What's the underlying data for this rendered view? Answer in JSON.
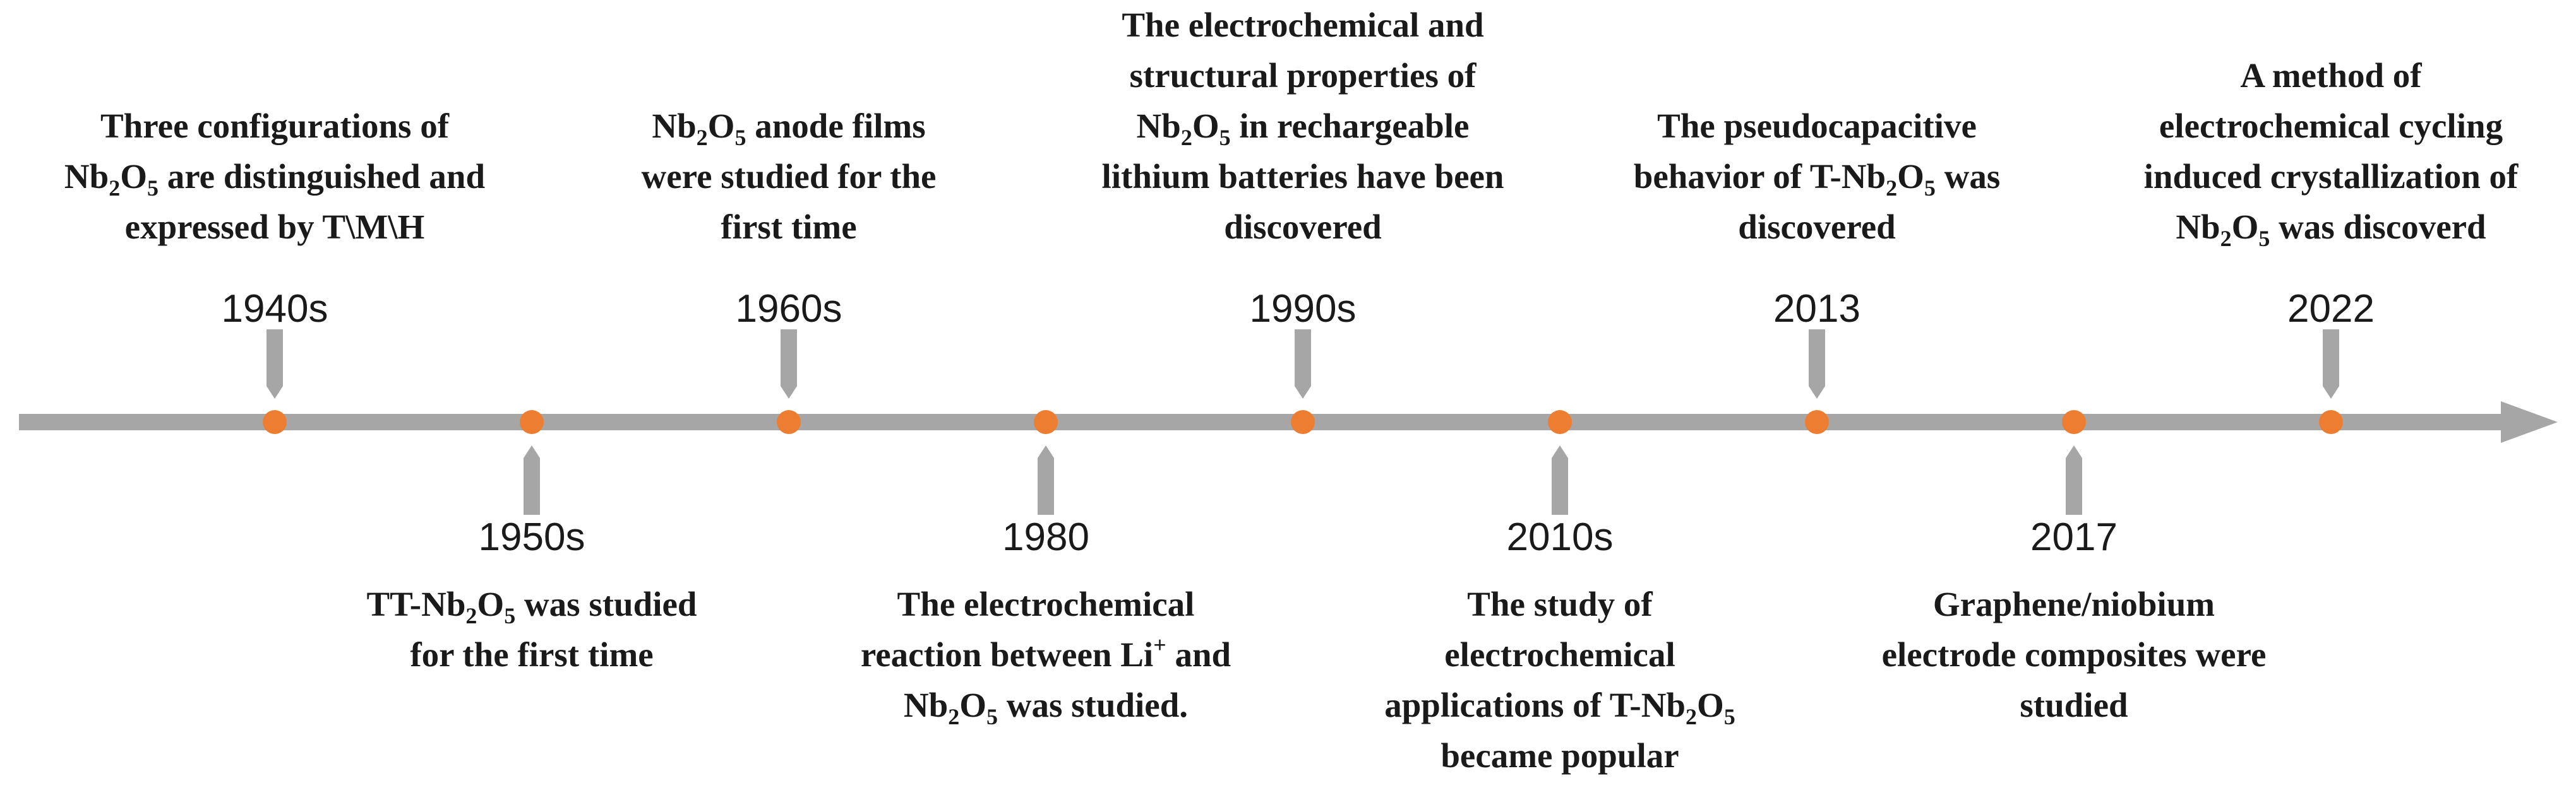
{
  "timeline": {
    "line_color": "#a6a6a6",
    "marker_color": "#ed7d31",
    "text_color": "#1a1a1a",
    "events": [
      {
        "year": "1940s",
        "position": "above",
        "lines": [
          [
            {
              "t": "Three configurations of"
            }
          ],
          [
            {
              "t": "Nb"
            },
            {
              "t": "2",
              "s": "sub"
            },
            {
              "t": "O"
            },
            {
              "t": "5",
              "s": "sub"
            },
            {
              "t": " are distinguished and"
            }
          ],
          [
            {
              "t": "expressed by T\\M\\H"
            }
          ]
        ]
      },
      {
        "year": "1950s",
        "position": "below",
        "lines": [
          [
            {
              "t": "TT-Nb"
            },
            {
              "t": "2",
              "s": "sub"
            },
            {
              "t": "O"
            },
            {
              "t": "5",
              "s": "sub"
            },
            {
              "t": " was studied"
            }
          ],
          [
            {
              "t": "for the first time"
            }
          ]
        ]
      },
      {
        "year": "1960s",
        "position": "above",
        "lines": [
          [
            {
              "t": "Nb"
            },
            {
              "t": "2",
              "s": "sub"
            },
            {
              "t": "O"
            },
            {
              "t": "5",
              "s": "sub"
            },
            {
              "t": " anode films"
            }
          ],
          [
            {
              "t": "were studied for the"
            }
          ],
          [
            {
              "t": "first time"
            }
          ]
        ]
      },
      {
        "year": "1980",
        "position": "below",
        "lines": [
          [
            {
              "t": "The electrochemical"
            }
          ],
          [
            {
              "t": "reaction between Li"
            },
            {
              "t": "+",
              "s": "sup"
            },
            {
              "t": " and"
            }
          ],
          [
            {
              "t": "Nb"
            },
            {
              "t": "2",
              "s": "sub"
            },
            {
              "t": "O"
            },
            {
              "t": "5",
              "s": "sub"
            },
            {
              "t": " was studied."
            }
          ]
        ]
      },
      {
        "year": "1990s",
        "position": "above",
        "lines": [
          [
            {
              "t": "The electrochemical and"
            }
          ],
          [
            {
              "t": "structural properties of"
            }
          ],
          [
            {
              "t": "Nb"
            },
            {
              "t": "2",
              "s": "sub"
            },
            {
              "t": "O"
            },
            {
              "t": "5",
              "s": "sub"
            },
            {
              "t": " in rechargeable"
            }
          ],
          [
            {
              "t": "lithium batteries have been"
            }
          ],
          [
            {
              "t": "discovered"
            }
          ]
        ]
      },
      {
        "year": "2010s",
        "position": "below",
        "lines": [
          [
            {
              "t": "The study of"
            }
          ],
          [
            {
              "t": "electrochemical"
            }
          ],
          [
            {
              "t": "applications of T-Nb"
            },
            {
              "t": "2",
              "s": "sub"
            },
            {
              "t": "O"
            },
            {
              "t": "5",
              "s": "sub"
            }
          ],
          [
            {
              "t": "became popular"
            }
          ]
        ]
      },
      {
        "year": "2013",
        "position": "above",
        "lines": [
          [
            {
              "t": "The pseudocapacitive"
            }
          ],
          [
            {
              "t": "behavior of T-Nb"
            },
            {
              "t": "2",
              "s": "sub"
            },
            {
              "t": "O"
            },
            {
              "t": "5",
              "s": "sub"
            },
            {
              "t": " was"
            }
          ],
          [
            {
              "t": "discovered"
            }
          ]
        ]
      },
      {
        "year": "2017",
        "position": "below",
        "lines": [
          [
            {
              "t": "Graphene/niobium"
            }
          ],
          [
            {
              "t": "electrode composites were"
            }
          ],
          [
            {
              "t": "studied"
            }
          ]
        ]
      },
      {
        "year": "2022",
        "position": "above",
        "lines": [
          [
            {
              "t": "A method of"
            }
          ],
          [
            {
              "t": "electrochemical cycling"
            }
          ],
          [
            {
              "t": "induced crystallization of"
            }
          ],
          [
            {
              "t": "Nb"
            },
            {
              "t": "2",
              "s": "sub"
            },
            {
              "t": "O"
            },
            {
              "t": "5",
              "s": "sub"
            },
            {
              "t": " was discoverd"
            }
          ]
        ]
      }
    ]
  }
}
